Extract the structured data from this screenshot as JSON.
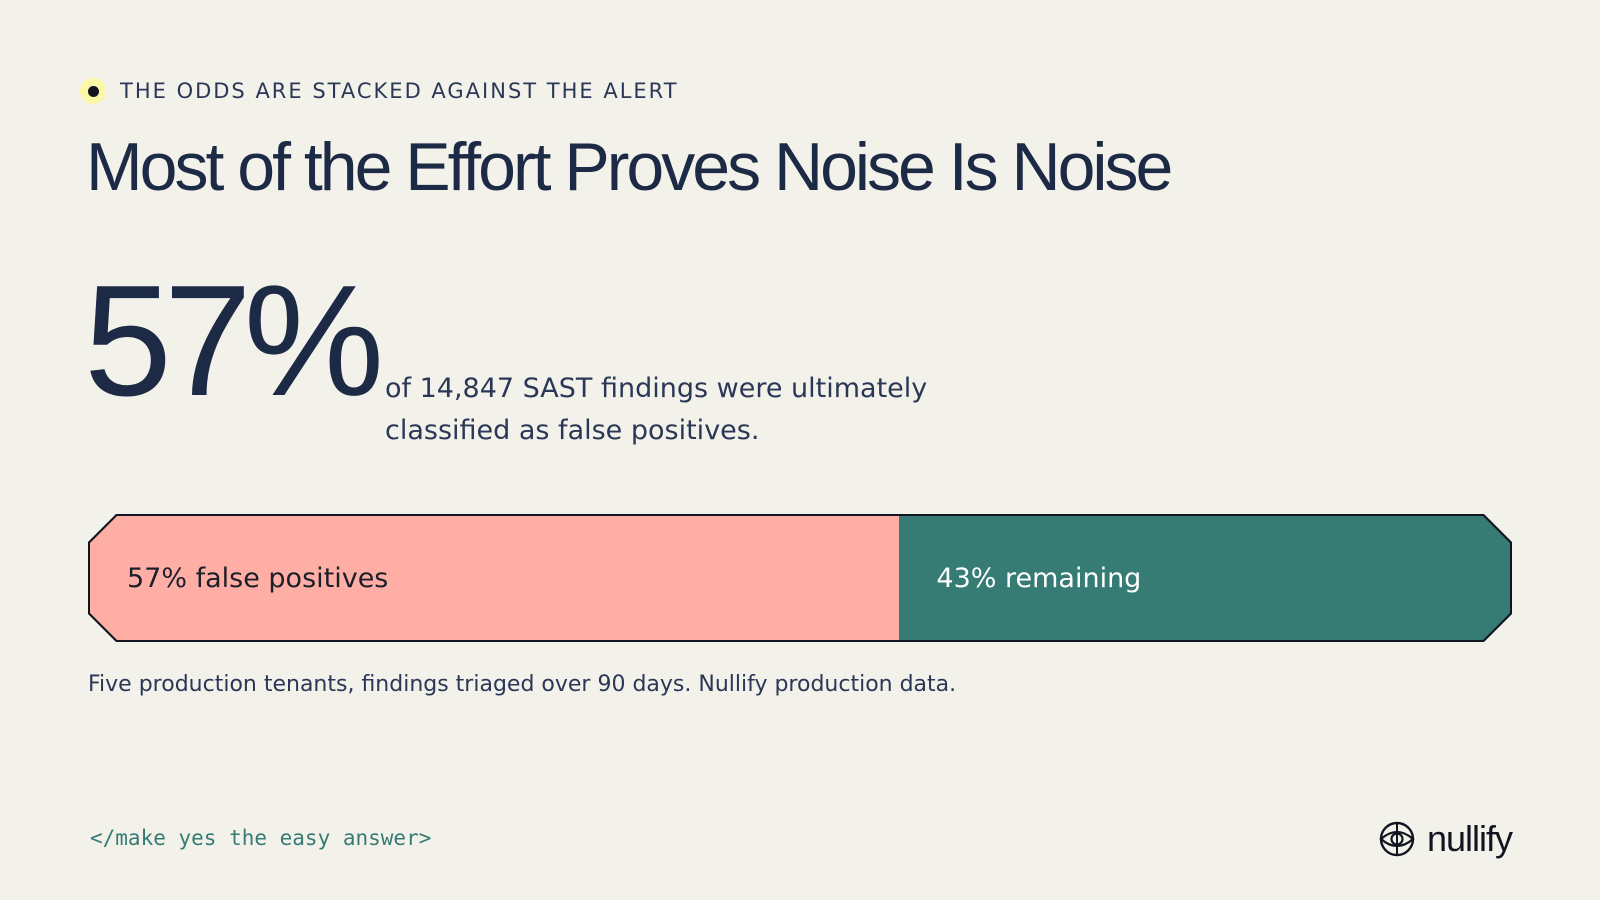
{
  "eyebrow": "THE ODDS ARE STACKED AGAINST THE ALERT",
  "title": "Most of the Effort Proves Noise Is Noise",
  "stat": {
    "value": "57%",
    "description": "of 14,847 SAST findings were ultimately classified as false positives."
  },
  "bar": {
    "false_positive_share": 0.57,
    "false_positive_label": "57% false positives",
    "remaining_label": "43% remaining",
    "colors": {
      "false_positive": "#ffaea6",
      "remaining": "#367b74"
    }
  },
  "footnote": "Five production tenants, findings triaged over 90 days. Nullify production data.",
  "footer": {
    "tagline": "</make yes the easy answer>",
    "brand_name": "nullify",
    "brand_icon": "globe-eye-icon"
  }
}
